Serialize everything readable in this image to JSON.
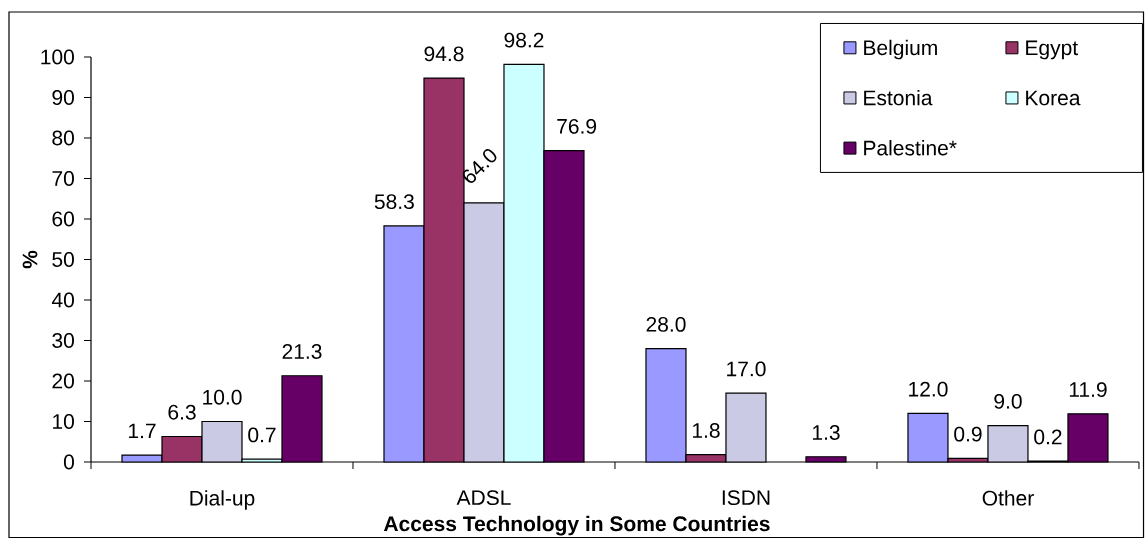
{
  "chart_data": {
    "type": "bar",
    "xlabel": "Access Technology in Some Countries",
    "ylabel": "%",
    "categories": [
      "Dial-up",
      "ADSL",
      "ISDN",
      "Other"
    ],
    "series": [
      {
        "name": "Belgium",
        "color": "#9999ff",
        "values": [
          1.7,
          58.3,
          28.0,
          12.0
        ],
        "value_labels": [
          "1.7",
          "58.3",
          "28.0",
          "12.0"
        ]
      },
      {
        "name": "Egypt",
        "color": "#993366",
        "values": [
          6.3,
          94.8,
          1.8,
          0.9
        ],
        "value_labels": [
          "6.3",
          "94.8",
          "1.8",
          "0.9"
        ]
      },
      {
        "name": "Estonia",
        "color": "#cacae4",
        "values": [
          10.0,
          64.0,
          17.0,
          9.0
        ],
        "value_labels": [
          "10.0",
          "64.0",
          "17.0",
          "9.0"
        ]
      },
      {
        "name": "Korea",
        "color": "#ccffff",
        "values": [
          0.7,
          98.2,
          null,
          0.2
        ],
        "value_labels": [
          "0.7",
          "98.2",
          null,
          "0.2"
        ]
      },
      {
        "name": "Palestine*",
        "color": "#660066",
        "values": [
          21.3,
          76.9,
          1.3,
          11.9
        ],
        "value_labels": [
          "21.3",
          "76.9",
          "1.3",
          "11.9"
        ]
      }
    ],
    "ylim": [
      0,
      100
    ],
    "yticks": [
      0,
      10,
      20,
      30,
      40,
      50,
      60,
      70,
      80,
      90,
      100
    ],
    "legend": "top right"
  }
}
